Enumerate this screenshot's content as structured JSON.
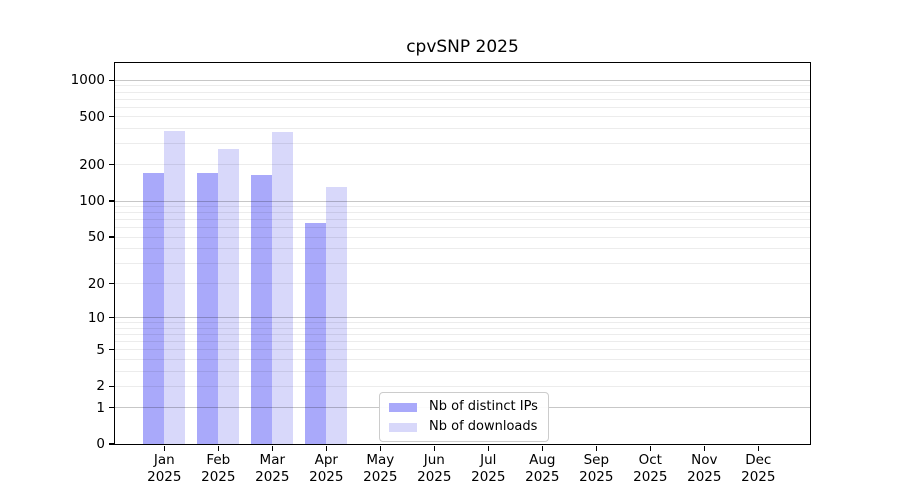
{
  "chart_data": {
    "type": "bar",
    "title": "cpvSNP 2025",
    "year_label": "2025",
    "months": [
      "Jan",
      "Feb",
      "Mar",
      "Apr",
      "May",
      "Jun",
      "Jul",
      "Aug",
      "Sep",
      "Oct",
      "Nov",
      "Dec"
    ],
    "series": [
      {
        "name": "Nb of distinct IPs",
        "color": "#a9a9fa",
        "values": [
          170,
          170,
          165,
          65,
          0,
          0,
          0,
          0,
          0,
          0,
          0,
          0
        ]
      },
      {
        "name": "Nb of downloads",
        "color": "#d8d8fa",
        "values": [
          380,
          270,
          375,
          130,
          0,
          0,
          0,
          0,
          0,
          0,
          0,
          0
        ]
      }
    ],
    "y_ticks": [
      0,
      1,
      2,
      5,
      10,
      20,
      50,
      100,
      200,
      500,
      1000
    ],
    "y_scale": "log10(value+1)",
    "ylim": [
      0,
      1380
    ],
    "xlabel": "",
    "ylabel": "",
    "grid": "horizontal, minor 2-9 per decade, major at powers of 10",
    "legend_position": "lower-center"
  }
}
